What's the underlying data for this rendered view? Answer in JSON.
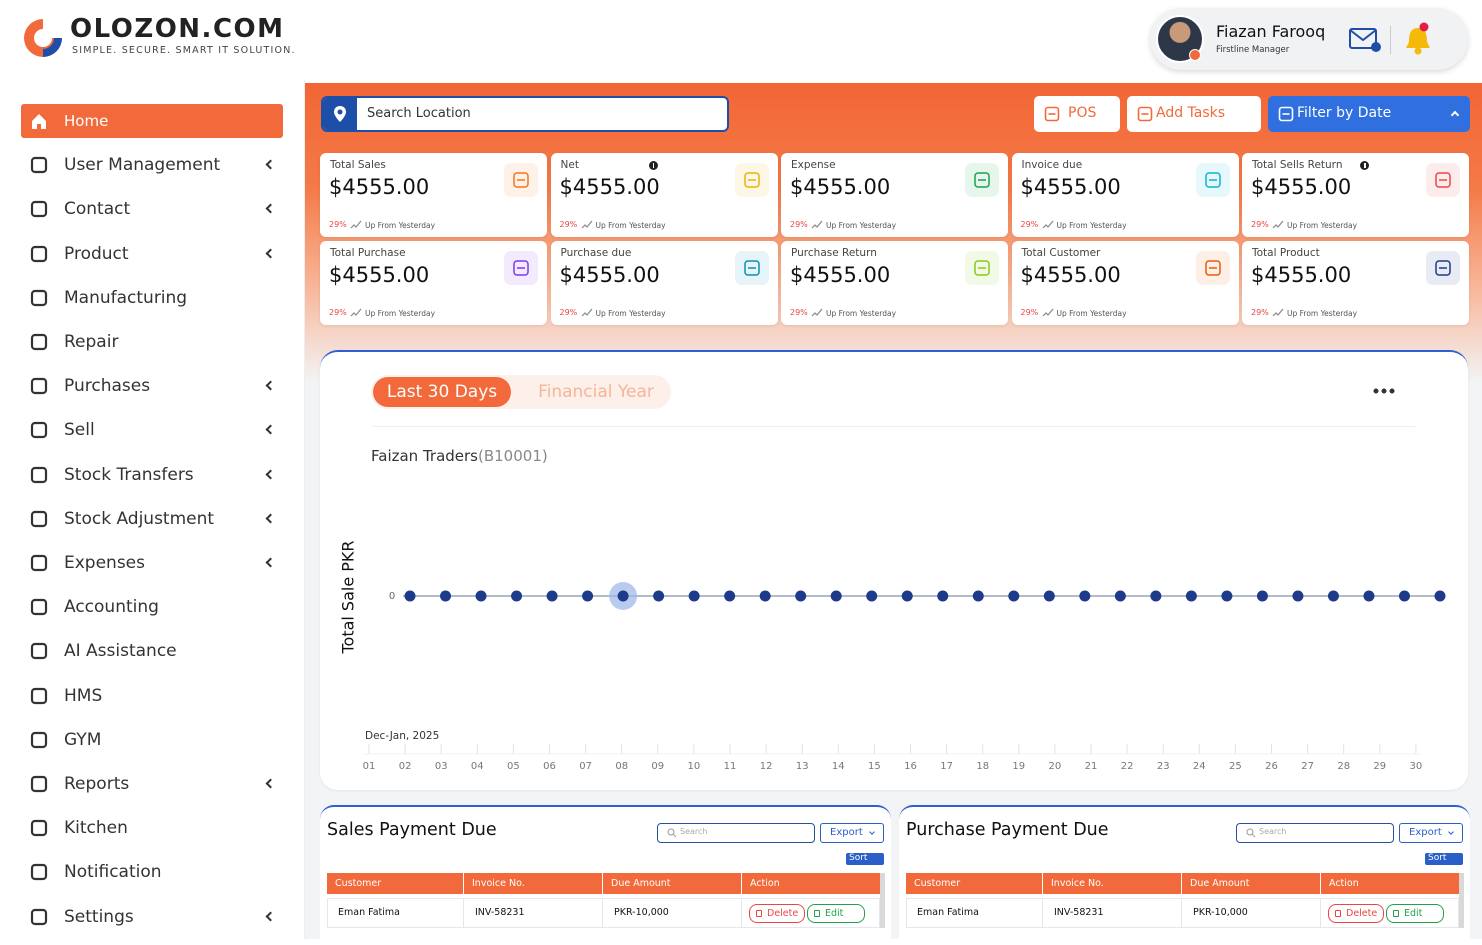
{
  "header": {
    "brand": "OLOZON.COM",
    "tagline": "SIMPLE. SECURE. SMART IT SOLUTION.",
    "user": {
      "name": "Fiazan Farooq",
      "role": "Firstline Manager"
    }
  },
  "sidebar": {
    "items": [
      {
        "label": "Home",
        "submenu": false,
        "active": true
      },
      {
        "label": "User Management",
        "submenu": true
      },
      {
        "label": "Contact",
        "submenu": true
      },
      {
        "label": "Product",
        "submenu": true
      },
      {
        "label": "Manufacturing",
        "submenu": false
      },
      {
        "label": "Repair",
        "submenu": false
      },
      {
        "label": "Purchases",
        "submenu": true
      },
      {
        "label": "Sell",
        "submenu": true
      },
      {
        "label": "Stock Transfers",
        "submenu": true
      },
      {
        "label": "Stock Adjustment",
        "submenu": true
      },
      {
        "label": "Expenses",
        "submenu": true
      },
      {
        "label": "Accounting",
        "submenu": false
      },
      {
        "label": "AI Assistance",
        "submenu": false
      },
      {
        "label": "HMS",
        "submenu": false
      },
      {
        "label": "GYM",
        "submenu": false
      },
      {
        "label": "Reports",
        "submenu": true
      },
      {
        "label": "Kitchen",
        "submenu": false
      },
      {
        "label": "Notification",
        "submenu": false
      },
      {
        "label": "Settings",
        "submenu": true
      }
    ]
  },
  "toolbar": {
    "search": "Search Location",
    "buttons": [
      "POS",
      "Add Tasks",
      "Filter by Date"
    ]
  },
  "stats": [
    {
      "title": "Total Sales",
      "value": "$4555.00",
      "change": "29%",
      "note": "Up From Yesterday",
      "info": false,
      "color": "#f97316"
    },
    {
      "title": "Net",
      "value": "$4555.00",
      "change": "29%",
      "note": "Up From Yesterday",
      "info": true,
      "color": "#eab308"
    },
    {
      "title": "Expense",
      "value": "$4555.00",
      "change": "29%",
      "note": "Up From Yesterday",
      "info": false,
      "color": "#16a34a"
    },
    {
      "title": "Invoice due",
      "value": "$4555.00",
      "change": "29%",
      "note": "Up From Yesterday",
      "info": false,
      "color": "#06b6d4"
    },
    {
      "title": "Total Sells Return",
      "value": "$4555.00",
      "change": "29%",
      "note": "Up From Yesterday",
      "info": true,
      "color": "#ef4444"
    },
    {
      "title": "Total Purchase",
      "value": "$4555.00",
      "change": "29%",
      "note": "Up From Yesterday",
      "info": false,
      "color": "#7c3aed"
    },
    {
      "title": "Purchase due",
      "value": "$4555.00",
      "change": "29%",
      "note": "Up From Yesterday",
      "info": false,
      "color": "#0891b2"
    },
    {
      "title": "Purchase Return",
      "value": "$4555.00",
      "change": "29%",
      "note": "Up From Yesterday",
      "info": false,
      "color": "#84cc16"
    },
    {
      "title": "Total Customer",
      "value": "$4555.00",
      "change": "29%",
      "note": "Up From Yesterday",
      "info": false,
      "color": "#ea580c"
    },
    {
      "title": "Total Product",
      "value": "$4555.00",
      "change": "29%",
      "note": "Up From Yesterday",
      "info": false,
      "color": "#1e3a8a"
    }
  ],
  "chart_data": {
    "type": "line",
    "tabs": [
      "Last 30 Days",
      "Financial Year"
    ],
    "title": "Faizan Traders",
    "subtitle": "(B10001)",
    "ylabel": "Total Sale PKR",
    "xlabel": "Dec-Jan, 2025",
    "categories": [
      "01",
      "02",
      "03",
      "04",
      "05",
      "06",
      "07",
      "08",
      "09",
      "10",
      "11",
      "12",
      "13",
      "14",
      "15",
      "16",
      "17",
      "18",
      "19",
      "20",
      "21",
      "22",
      "23",
      "24",
      "25",
      "26",
      "27",
      "28",
      "29",
      "30"
    ],
    "values": [
      0,
      0,
      0,
      0,
      0,
      0,
      0,
      0,
      0,
      0,
      0,
      0,
      0,
      0,
      0,
      0,
      0,
      0,
      0,
      0,
      0,
      0,
      0,
      0,
      0,
      0,
      0,
      0,
      0,
      0
    ],
    "color": "#1e3a8a",
    "ylim": [
      -1,
      1
    ],
    "yticks": [
      0
    ]
  },
  "tables": [
    {
      "title": "Sales Payment Due",
      "search": "Search",
      "export": "Export",
      "sort": "Sort",
      "columns": [
        "Customer",
        "Invoice No.",
        "Due Amount",
        "Action"
      ],
      "rows": [
        {
          "cells": [
            "Eman Fatima",
            "INV-58231",
            "PKR-10,000"
          ],
          "actions": [
            "Delete",
            "Edit"
          ]
        }
      ]
    },
    {
      "title": "Purchase Payment Due",
      "search": "Search",
      "export": "Export",
      "sort": "Sort",
      "columns": [
        "Customer",
        "Invoice No.",
        "Due Amount",
        "Action"
      ],
      "rows": [
        {
          "cells": [
            "Eman Fatima",
            "INV-58231",
            "PKR-10,000"
          ],
          "actions": [
            "Delete",
            "Edit"
          ]
        }
      ]
    }
  ]
}
